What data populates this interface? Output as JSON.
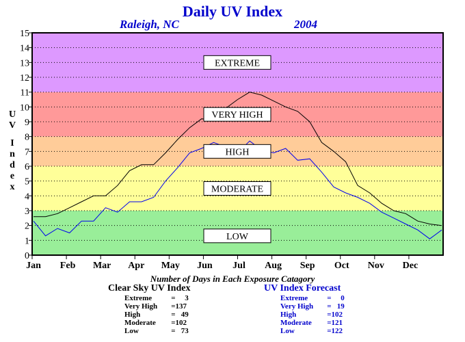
{
  "header": {
    "title": "Daily UV Index",
    "city": "Raleigh, NC",
    "year": "2004"
  },
  "y_axis_letters": {
    "first": [
      "U",
      "V"
    ],
    "second": [
      "I",
      "n",
      "d",
      "e",
      "x"
    ]
  },
  "colors": {
    "low": "#99ee99",
    "moderate": "#ffff99",
    "high": "#ffcc99",
    "very_high": "#ff9999",
    "extreme": "#dd99ff",
    "clear_sky_line": "#000000",
    "forecast_line": "#0000ee"
  },
  "chart_data": {
    "type": "line",
    "title": "Daily UV Index",
    "ylim": [
      0,
      15
    ],
    "y_ticks": [
      "0",
      "1",
      "2",
      "3",
      "4",
      "5",
      "6",
      "7",
      "8",
      "9",
      "10",
      "11",
      "12",
      "13",
      "14",
      "15"
    ],
    "month_labels": [
      "Jan",
      "Feb",
      "Mar",
      "Apr",
      "May",
      "Jun",
      "Jul",
      "Aug",
      "Sep",
      "Oct",
      "Nov",
      "Dec"
    ],
    "grid": "horizontal dotted",
    "bands": [
      {
        "label": "LOW",
        "from": 0,
        "to": 3
      },
      {
        "label": "MODERATE",
        "from": 3,
        "to": 6
      },
      {
        "label": "HIGH",
        "from": 6,
        "to": 8
      },
      {
        "label": "VERY HIGH",
        "from": 8,
        "to": 11
      },
      {
        "label": "EXTREME",
        "from": 11,
        "to": 15
      }
    ],
    "series": [
      {
        "key": "clear_sky",
        "values": [
          2.6,
          2.6,
          2.8,
          3.2,
          3.6,
          4.0,
          4.0,
          4.7,
          5.7,
          6.1,
          6.1,
          6.9,
          7.8,
          8.6,
          9.2,
          9.1,
          9.9,
          10.5,
          11.0,
          10.8,
          10.4,
          10.0,
          9.7,
          9.0,
          7.6,
          7.0,
          6.3,
          4.7,
          4.2,
          3.5,
          3.0,
          2.8,
          2.3,
          2.1,
          2.0
        ]
      },
      {
        "key": "forecast",
        "values": [
          2.3,
          1.3,
          1.8,
          1.5,
          2.3,
          2.3,
          3.2,
          2.9,
          3.6,
          3.6,
          3.9,
          5.0,
          5.9,
          6.9,
          7.2,
          7.6,
          7.3,
          6.9,
          7.7,
          7.1,
          6.9,
          7.2,
          6.4,
          6.5,
          5.6,
          4.6,
          4.2,
          3.9,
          3.5,
          2.9,
          2.5,
          2.1,
          1.7,
          1.1,
          1.7
        ]
      }
    ]
  },
  "band_labels": {
    "extreme": "EXTREME",
    "very_high": "VERY HIGH",
    "high": "HIGH",
    "moderate": "MODERATE",
    "low": "LOW"
  },
  "summary": {
    "heading": "Number of Days in Each Exposure Catagory",
    "clear_sky": {
      "title": "Clear Sky UV Index",
      "rows": [
        {
          "label": "Extreme",
          "value": "=     3"
        },
        {
          "label": "Very High",
          "value": "=137"
        },
        {
          "label": "High",
          "value": "=   49"
        },
        {
          "label": "Moderate",
          "value": "=102"
        },
        {
          "label": "Low",
          "value": "=   73"
        }
      ]
    },
    "forecast": {
      "title": "UV Index Forecast",
      "rows": [
        {
          "label": "Extreme",
          "value": "=     0"
        },
        {
          "label": "Very High",
          "value": "=   19"
        },
        {
          "label": "High",
          "value": "=102"
        },
        {
          "label": "Moderate",
          "value": "=121"
        },
        {
          "label": "Low",
          "value": "=122"
        }
      ]
    }
  }
}
